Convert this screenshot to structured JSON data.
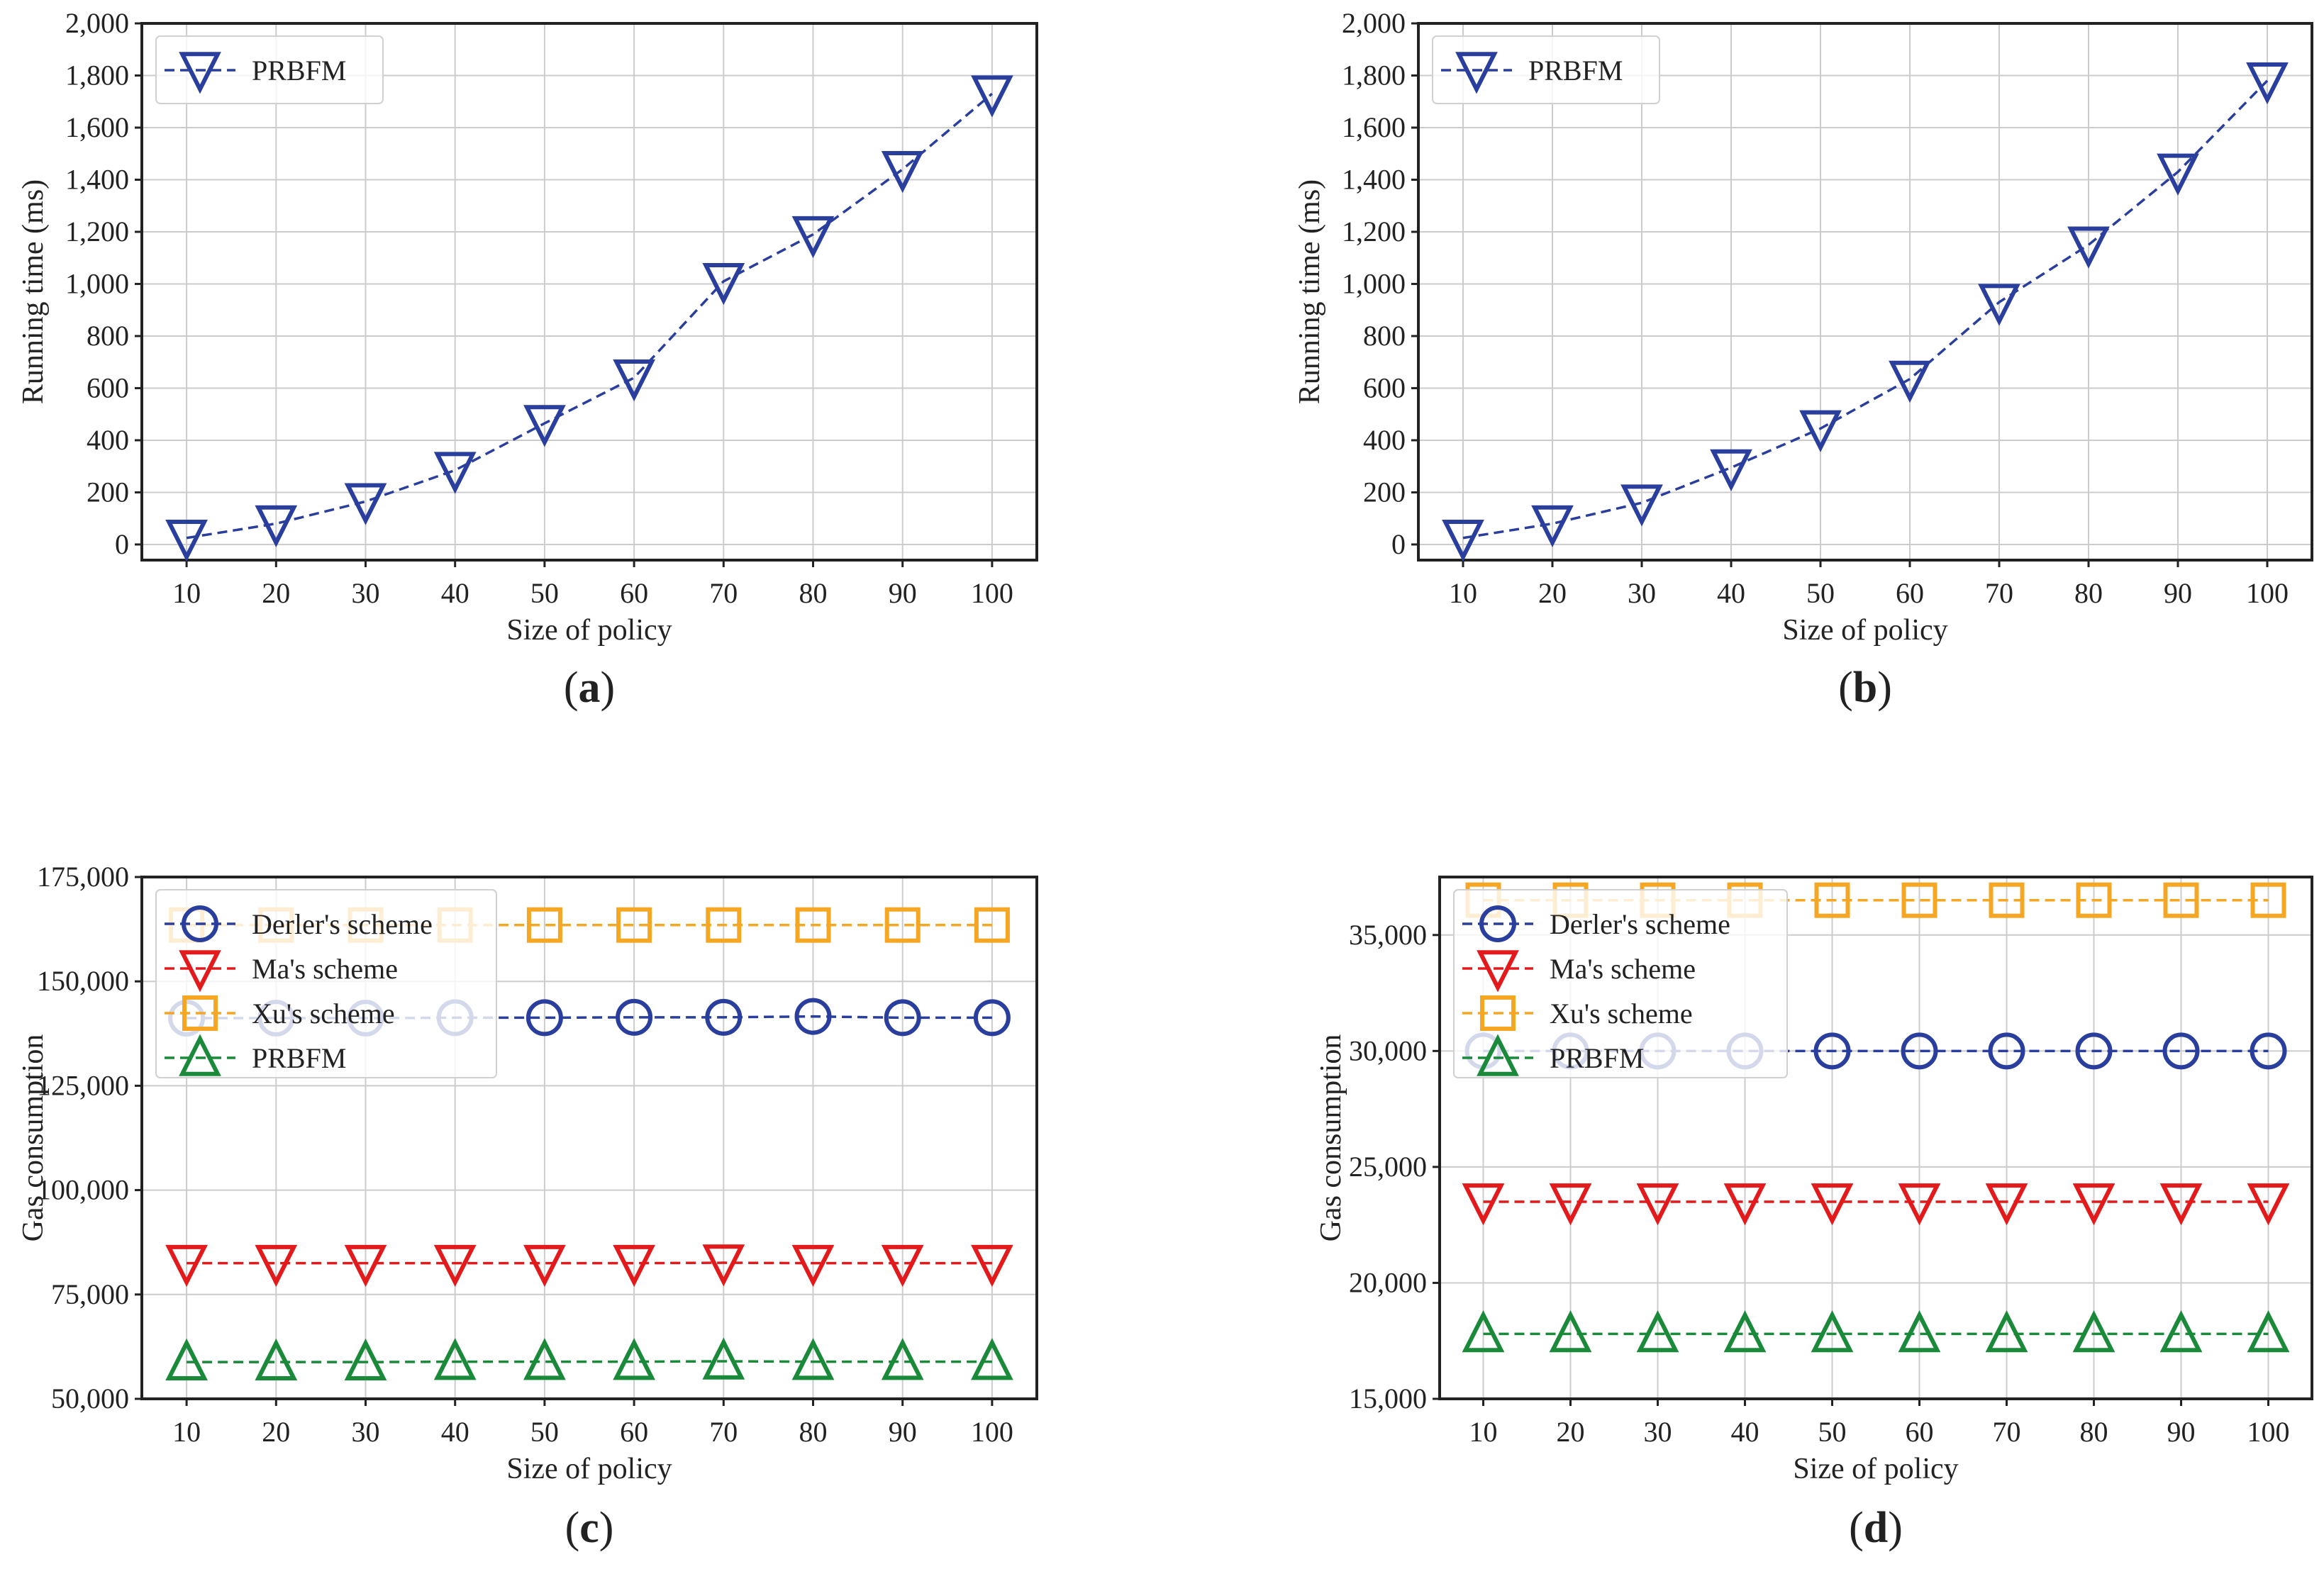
{
  "figure": {
    "colors": {
      "derler": "#2a3f9d",
      "ma": "#e31a1c",
      "xu": "#f5a623",
      "prbfm": "#1a8a3a",
      "grid": "#cccccc",
      "axis": "#222222"
    }
  },
  "chart_data": [
    {
      "id": "a",
      "type": "line",
      "caption_open": "(",
      "caption_letter": "a",
      "caption_close": ")",
      "xlabel": "Size of policy",
      "ylabel": "Running time (ms)",
      "x": [
        10,
        20,
        30,
        40,
        50,
        60,
        70,
        80,
        90,
        100
      ],
      "ylim": [
        -60,
        2000
      ],
      "yticks": [
        0,
        200,
        400,
        600,
        800,
        1000,
        1200,
        1400,
        1600,
        1800,
        2000
      ],
      "ytick_labels": [
        "0",
        "200",
        "400",
        "600",
        "800",
        "1,000",
        "1,200",
        "1,400",
        "1,600",
        "1,800",
        "2,000"
      ],
      "legend_position": "top-left",
      "series": [
        {
          "name": "PRBFM",
          "color": "#2a3f9d",
          "marker": "triangle-down",
          "values": [
            25,
            80,
            165,
            285,
            465,
            640,
            1010,
            1190,
            1440,
            1730
          ]
        }
      ]
    },
    {
      "id": "b",
      "type": "line",
      "caption_open": "(",
      "caption_letter": "b",
      "caption_close": ")",
      "xlabel": "Size of policy",
      "ylabel": "Running time (ms)",
      "x": [
        10,
        20,
        30,
        40,
        50,
        60,
        70,
        80,
        90,
        100
      ],
      "ylim": [
        -60,
        2000
      ],
      "yticks": [
        0,
        200,
        400,
        600,
        800,
        1000,
        1200,
        1400,
        1600,
        1800,
        2000
      ],
      "ytick_labels": [
        "0",
        "200",
        "400",
        "600",
        "800",
        "1,000",
        "1,200",
        "1,400",
        "1,600",
        "1,800",
        "2,000"
      ],
      "legend_position": "top-left",
      "series": [
        {
          "name": "PRBFM",
          "color": "#2a3f9d",
          "marker": "triangle-down",
          "values": [
            25,
            80,
            160,
            295,
            445,
            635,
            930,
            1150,
            1430,
            1780
          ]
        }
      ]
    },
    {
      "id": "c",
      "type": "line",
      "caption_open": "(",
      "caption_letter": "c",
      "caption_close": ")",
      "xlabel": "Size of policy",
      "ylabel": "Gas consumption",
      "x": [
        10,
        20,
        30,
        40,
        50,
        60,
        70,
        80,
        90,
        100
      ],
      "ylim": [
        50000,
        175000
      ],
      "yticks": [
        50000,
        75000,
        100000,
        125000,
        150000,
        175000
      ],
      "ytick_labels": [
        "50,000",
        "75,000",
        "100,000",
        "125,000",
        "150,000",
        "175,000"
      ],
      "legend_position": "top-left",
      "series": [
        {
          "name": "Derler's scheme",
          "color": "#2a3f9d",
          "marker": "circle",
          "values": [
            141200,
            141200,
            141200,
            141300,
            141300,
            141400,
            141400,
            141600,
            141300,
            141300
          ]
        },
        {
          "name": "Ma's scheme",
          "color": "#e31a1c",
          "marker": "triangle-down",
          "values": [
            82500,
            82500,
            82500,
            82500,
            82500,
            82500,
            82600,
            82500,
            82500,
            82500
          ]
        },
        {
          "name": "Xu's scheme",
          "color": "#f5a623",
          "marker": "square",
          "values": [
            163500,
            163500,
            163500,
            163500,
            163500,
            163500,
            163500,
            163500,
            163500,
            163500
          ]
        },
        {
          "name": "PRBFM",
          "color": "#1a8a3a",
          "marker": "triangle-up",
          "values": [
            58800,
            58800,
            58800,
            58900,
            58900,
            58900,
            59000,
            58900,
            58900,
            58900
          ]
        }
      ]
    },
    {
      "id": "d",
      "type": "line",
      "caption_open": "(",
      "caption_letter": "d",
      "caption_close": ")",
      "xlabel": "Size of policy",
      "ylabel": "Gas consumption",
      "x": [
        10,
        20,
        30,
        40,
        50,
        60,
        70,
        80,
        90,
        100
      ],
      "ylim": [
        15000,
        37500
      ],
      "yticks": [
        15000,
        20000,
        25000,
        30000,
        35000
      ],
      "ytick_labels": [
        "15,000",
        "20,000",
        "25,000",
        "30,000",
        "35,000"
      ],
      "legend_position": "top-left",
      "series": [
        {
          "name": "Derler's scheme",
          "color": "#2a3f9d",
          "marker": "circle",
          "values": [
            30000,
            30000,
            30000,
            30000,
            30000,
            30000,
            30000,
            30000,
            30000,
            30000
          ]
        },
        {
          "name": "Ma's scheme",
          "color": "#e31a1c",
          "marker": "triangle-down",
          "values": [
            23500,
            23500,
            23500,
            23500,
            23500,
            23500,
            23500,
            23500,
            23500,
            23500
          ]
        },
        {
          "name": "Xu's scheme",
          "color": "#f5a623",
          "marker": "square",
          "values": [
            36500,
            36500,
            36500,
            36500,
            36500,
            36500,
            36500,
            36500,
            36500,
            36500
          ]
        },
        {
          "name": "PRBFM",
          "color": "#1a8a3a",
          "marker": "triangle-up",
          "values": [
            17800,
            17800,
            17800,
            17800,
            17800,
            17800,
            17800,
            17800,
            17800,
            17800
          ]
        }
      ]
    }
  ]
}
